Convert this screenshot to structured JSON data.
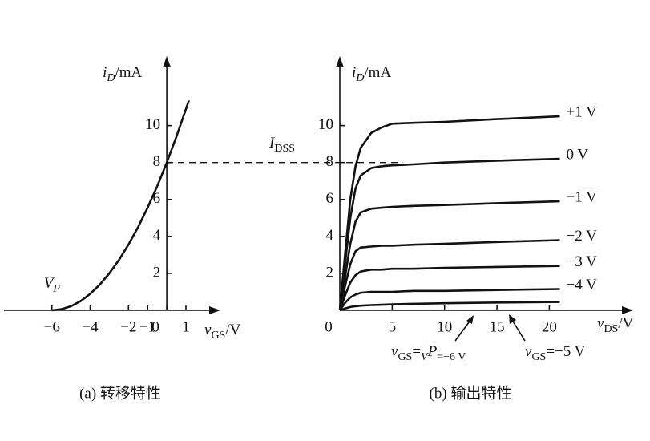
{
  "chart_data": [
    {
      "type": "line",
      "caption": "(a) 转移特性",
      "xlabel": [
        "v",
        "GS",
        "/V"
      ],
      "ylabel": [
        "i",
        "D",
        "/mA"
      ],
      "x": [
        -6,
        -5.5,
        -5,
        -4.5,
        -4,
        -3.5,
        -3,
        -2.5,
        -2,
        -1.5,
        -1,
        -0.5,
        0,
        0.5,
        1,
        1.15
      ],
      "values": [
        0,
        0.06,
        0.22,
        0.5,
        0.89,
        1.39,
        2,
        2.72,
        3.56,
        4.5,
        5.56,
        6.72,
        8,
        9.39,
        10.89,
        11.36
      ],
      "xlim": [
        -8.5,
        2.8
      ],
      "ylim": [
        0,
        13.5
      ],
      "xticks": [
        {
          "value": -6,
          "label": "−6"
        },
        {
          "value": -4,
          "label": "−4"
        },
        {
          "value": -2,
          "label": "−2"
        },
        {
          "value": -1,
          "label": "−1"
        },
        0,
        1
      ],
      "yticks": [
        2,
        4,
        6,
        8,
        10
      ],
      "annotation": [
        "V",
        "P"
      ]
    },
    {
      "type": "line",
      "caption": "(b) 输出特性",
      "xlabel": [
        "v",
        "DS",
        "/V"
      ],
      "ylabel": [
        "i",
        "D",
        "/mA"
      ],
      "x": [
        0,
        0.5,
        1,
        1.5,
        2,
        3,
        4,
        5,
        7,
        10,
        15,
        21
      ],
      "series": [
        {
          "name": "+1 V",
          "values": [
            0,
            3,
            6,
            7.8,
            8.8,
            9.6,
            9.9,
            10.1,
            10.15,
            10.2,
            10.35,
            10.5
          ]
        },
        {
          "name": "0 V",
          "values": [
            0,
            2.5,
            5,
            6.6,
            7.3,
            7.7,
            7.8,
            7.85,
            7.9,
            8.0,
            8.1,
            8.2
          ]
        },
        {
          "name": "−1 V",
          "values": [
            0,
            1.8,
            3.6,
            4.8,
            5.3,
            5.5,
            5.55,
            5.6,
            5.65,
            5.7,
            5.8,
            5.9
          ]
        },
        {
          "name": "−2 V",
          "values": [
            0,
            1.3,
            2.5,
            3.2,
            3.4,
            3.45,
            3.5,
            3.5,
            3.55,
            3.6,
            3.7,
            3.8
          ]
        },
        {
          "name": "−3 V",
          "values": [
            0,
            0.8,
            1.5,
            1.9,
            2.1,
            2.2,
            2.2,
            2.25,
            2.25,
            2.3,
            2.35,
            2.4
          ]
        },
        {
          "name": "−4 V",
          "values": [
            0,
            0.4,
            0.7,
            0.85,
            0.95,
            1.0,
            1.0,
            1.0,
            1.05,
            1.05,
            1.1,
            1.15
          ]
        },
        {
          "annotation": [
            "v",
            "GS",
            "=−5 V"
          ],
          "values": [
            0,
            0.1,
            0.18,
            0.22,
            0.25,
            0.28,
            0.3,
            0.32,
            0.35,
            0.38,
            0.42,
            0.45
          ]
        }
      ],
      "annotations": [
        [
          "v",
          "GS",
          "=",
          "V",
          "P",
          "=−6 V"
        ]
      ],
      "xlim": [
        0,
        28
      ],
      "ylim": [
        0,
        13.5
      ],
      "xticks": [
        0,
        5,
        10,
        15,
        20
      ],
      "yticks": [
        2,
        4,
        6,
        8,
        10
      ],
      "hline": {
        "value": 8,
        "label": [
          "I",
          "DSS"
        ]
      }
    }
  ]
}
